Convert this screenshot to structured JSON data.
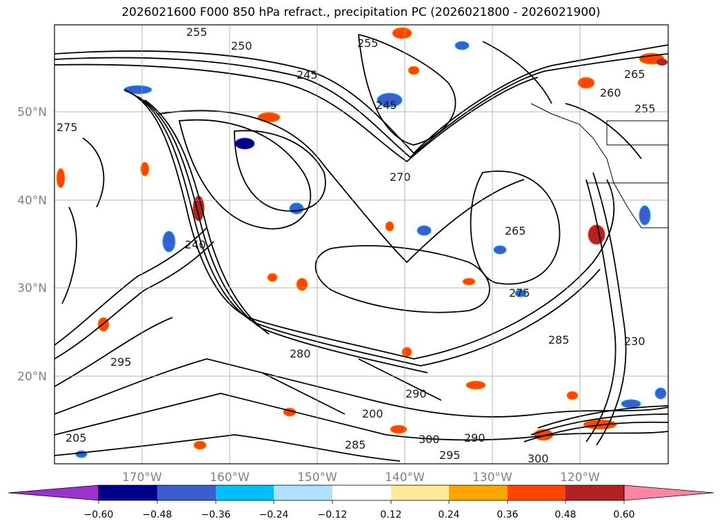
{
  "title": "2026021600 F000 850 hPa refract., precipitation PC (2026021800 - 2026021900)",
  "map": {
    "lat_labels": [
      "50°N",
      "40°N",
      "30°N",
      "20°N"
    ],
    "lon_labels": [
      "170°W",
      "160°W",
      "150°W",
      "140°W",
      "130°W",
      "120°W"
    ],
    "contour_labels": [
      "255",
      "255",
      "245",
      "245",
      "250",
      "270",
      "275",
      "265",
      "275",
      "285",
      "290",
      "300",
      "295",
      "280",
      "230",
      "260",
      "255",
      "265",
      "295",
      "240",
      "290",
      "285",
      "200",
      "205",
      "300"
    ]
  },
  "colorbar": {
    "ticks": [
      "−0.60",
      "−0.48",
      "−0.36",
      "−0.24",
      "−0.12",
      "0.12",
      "0.24",
      "0.36",
      "0.48",
      "0.60"
    ],
    "colors": [
      "#9933cc",
      "#00008b",
      "#3a5fcd",
      "#00bfff",
      "#b0e2ff",
      "#ffffff",
      "#ffe89a",
      "#ffa500",
      "#ff4500",
      "#b22222",
      "#ff85a2"
    ]
  }
}
